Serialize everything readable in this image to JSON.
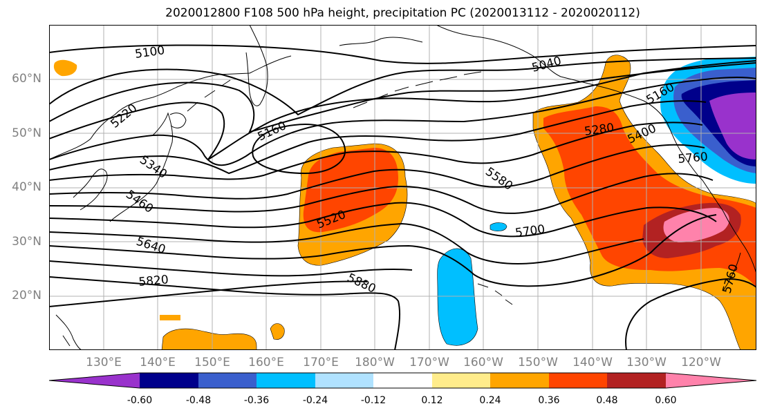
{
  "title": "2020012800 F108 500 hPa height, precipitation PC (2020013112 - 2020020112)",
  "map": {
    "lat_labels": [
      "60°N",
      "50°N",
      "40°N",
      "30°N",
      "20°N"
    ],
    "lon_labels": [
      "130°E",
      "140°E",
      "150°E",
      "160°E",
      "170°E",
      "180°W",
      "170°W",
      "160°W",
      "150°W",
      "140°W",
      "130°W",
      "120°W"
    ],
    "contour_labels": [
      "5100",
      "5040",
      "5220",
      "5160",
      "5160",
      "5280",
      "5340",
      "5400",
      "5460",
      "5520",
      "5580",
      "5640",
      "5700",
      "5760",
      "5760",
      "5820",
      "5880"
    ]
  },
  "colorbar": {
    "colors": [
      "#9932cc",
      "#00008b",
      "#3a5fcd",
      "#00bfff",
      "#b0e2ff",
      "#ffffff",
      "#ffec8b",
      "#ffa500",
      "#ff4500",
      "#b22222",
      "#ff82ab"
    ],
    "tick_labels": [
      "-0.60",
      "-0.48",
      "-0.36",
      "-0.24",
      "-0.12",
      "0.12",
      "0.24",
      "0.36",
      "0.48",
      "0.60"
    ]
  }
}
